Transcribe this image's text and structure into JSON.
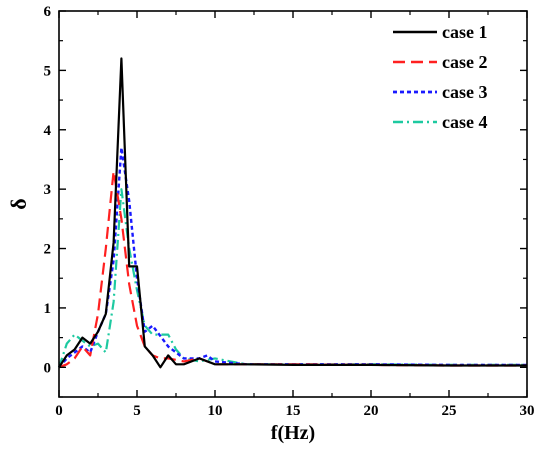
{
  "chart_data": {
    "type": "line",
    "xlabel": "f(Hz)",
    "ylabel": "δ",
    "xlim": [
      0,
      30
    ],
    "ylim": [
      -0.5,
      6
    ],
    "xticks": [
      0,
      5,
      10,
      15,
      20,
      25,
      30
    ],
    "yticks": [
      0,
      1,
      2,
      3,
      4,
      5,
      6
    ],
    "legend_position": "top-right",
    "grid": false,
    "series": [
      {
        "name": "case 1",
        "color": "#000000",
        "style": "solid",
        "x": [
          0,
          0.5,
          1,
          1.5,
          2,
          2.5,
          3,
          3.5,
          4,
          4.5,
          5,
          5.5,
          6,
          6.5,
          7,
          7.5,
          8,
          9,
          10,
          11,
          12,
          15,
          20,
          25,
          30
        ],
        "y": [
          0,
          0.2,
          0.3,
          0.5,
          0.4,
          0.6,
          0.9,
          2.1,
          5.2,
          1.7,
          1.7,
          0.35,
          0.2,
          0.0,
          0.2,
          0.05,
          0.05,
          0.15,
          0.05,
          0.05,
          0.05,
          0.04,
          0.04,
          0.03,
          0.03
        ]
      },
      {
        "name": "case 2",
        "color": "#ff2020",
        "style": "dashed",
        "x": [
          0,
          0.5,
          1,
          1.5,
          2,
          2.5,
          3,
          3.5,
          4,
          4.5,
          5,
          5.5,
          6,
          6.5,
          7,
          8,
          9,
          10,
          12,
          15,
          20,
          25,
          30
        ],
        "y": [
          0,
          0.05,
          0.15,
          0.35,
          0.2,
          0.9,
          2.0,
          3.3,
          2.5,
          1.4,
          0.7,
          0.35,
          0.2,
          0.15,
          0.15,
          0.1,
          0.15,
          0.05,
          0.05,
          0.05,
          0.04,
          0.03,
          0.03
        ]
      },
      {
        "name": "case 3",
        "color": "#1a1aff",
        "style": "dotted",
        "x": [
          0,
          0.5,
          1,
          1.5,
          2,
          2.5,
          3,
          3.5,
          4,
          4.5,
          5,
          5.5,
          6,
          7,
          8,
          9,
          9.5,
          10,
          12,
          15,
          20,
          25,
          30
        ],
        "y": [
          0,
          0.15,
          0.25,
          0.35,
          0.25,
          0.6,
          0.9,
          1.8,
          3.7,
          2.8,
          1.5,
          0.6,
          0.7,
          0.35,
          0.15,
          0.15,
          0.2,
          0.1,
          0.05,
          0.05,
          0.05,
          0.04,
          0.04
        ]
      },
      {
        "name": "case 4",
        "color": "#1dc9a0",
        "style": "dashdot",
        "x": [
          0,
          0.5,
          1,
          1.5,
          2,
          2.5,
          3,
          3.5,
          4,
          4.5,
          5,
          5.5,
          6,
          7,
          7.5,
          8,
          9,
          10,
          11,
          12,
          15,
          17.5,
          20,
          25,
          30
        ],
        "y": [
          0,
          0.4,
          0.55,
          0.45,
          0.35,
          0.4,
          0.25,
          1.1,
          3.0,
          2.0,
          1.3,
          0.7,
          0.55,
          0.55,
          0.3,
          0.15,
          0.1,
          0.15,
          0.1,
          0.05,
          0.05,
          0.05,
          0.05,
          0.04,
          0.04
        ]
      }
    ]
  }
}
